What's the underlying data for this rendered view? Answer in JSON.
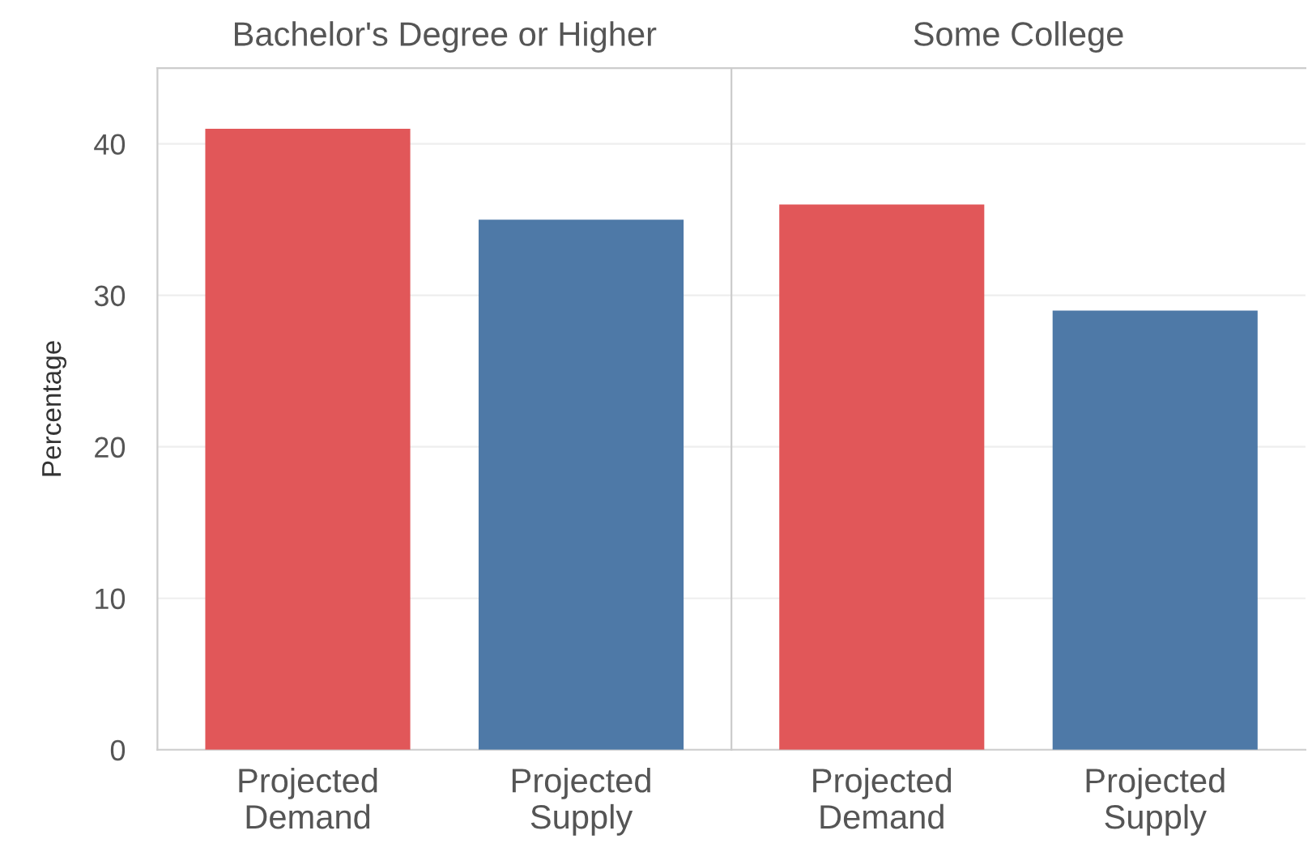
{
  "chart_data": [
    {
      "type": "bar",
      "title": "Bachelor's Degree or Higher",
      "ylabel": "Percentage",
      "categories": [
        "Projected\nDemand",
        "Projected\nSupply"
      ],
      "values": [
        41,
        35
      ],
      "colors": [
        "#e15759",
        "#4e79a7"
      ],
      "ylim": [
        0,
        45
      ],
      "yticks": [
        0,
        10,
        20,
        30,
        40
      ],
      "grid": "y"
    },
    {
      "type": "bar",
      "title": "Some College",
      "categories": [
        "Projected\nDemand",
        "Projected\nSupply"
      ],
      "values": [
        36,
        29
      ],
      "colors": [
        "#e15759",
        "#4e79a7"
      ],
      "ylim": [
        0,
        45
      ],
      "yticks": [
        0,
        10,
        20,
        30,
        40
      ],
      "grid": "y",
      "tick_labels": "x"
    }
  ]
}
